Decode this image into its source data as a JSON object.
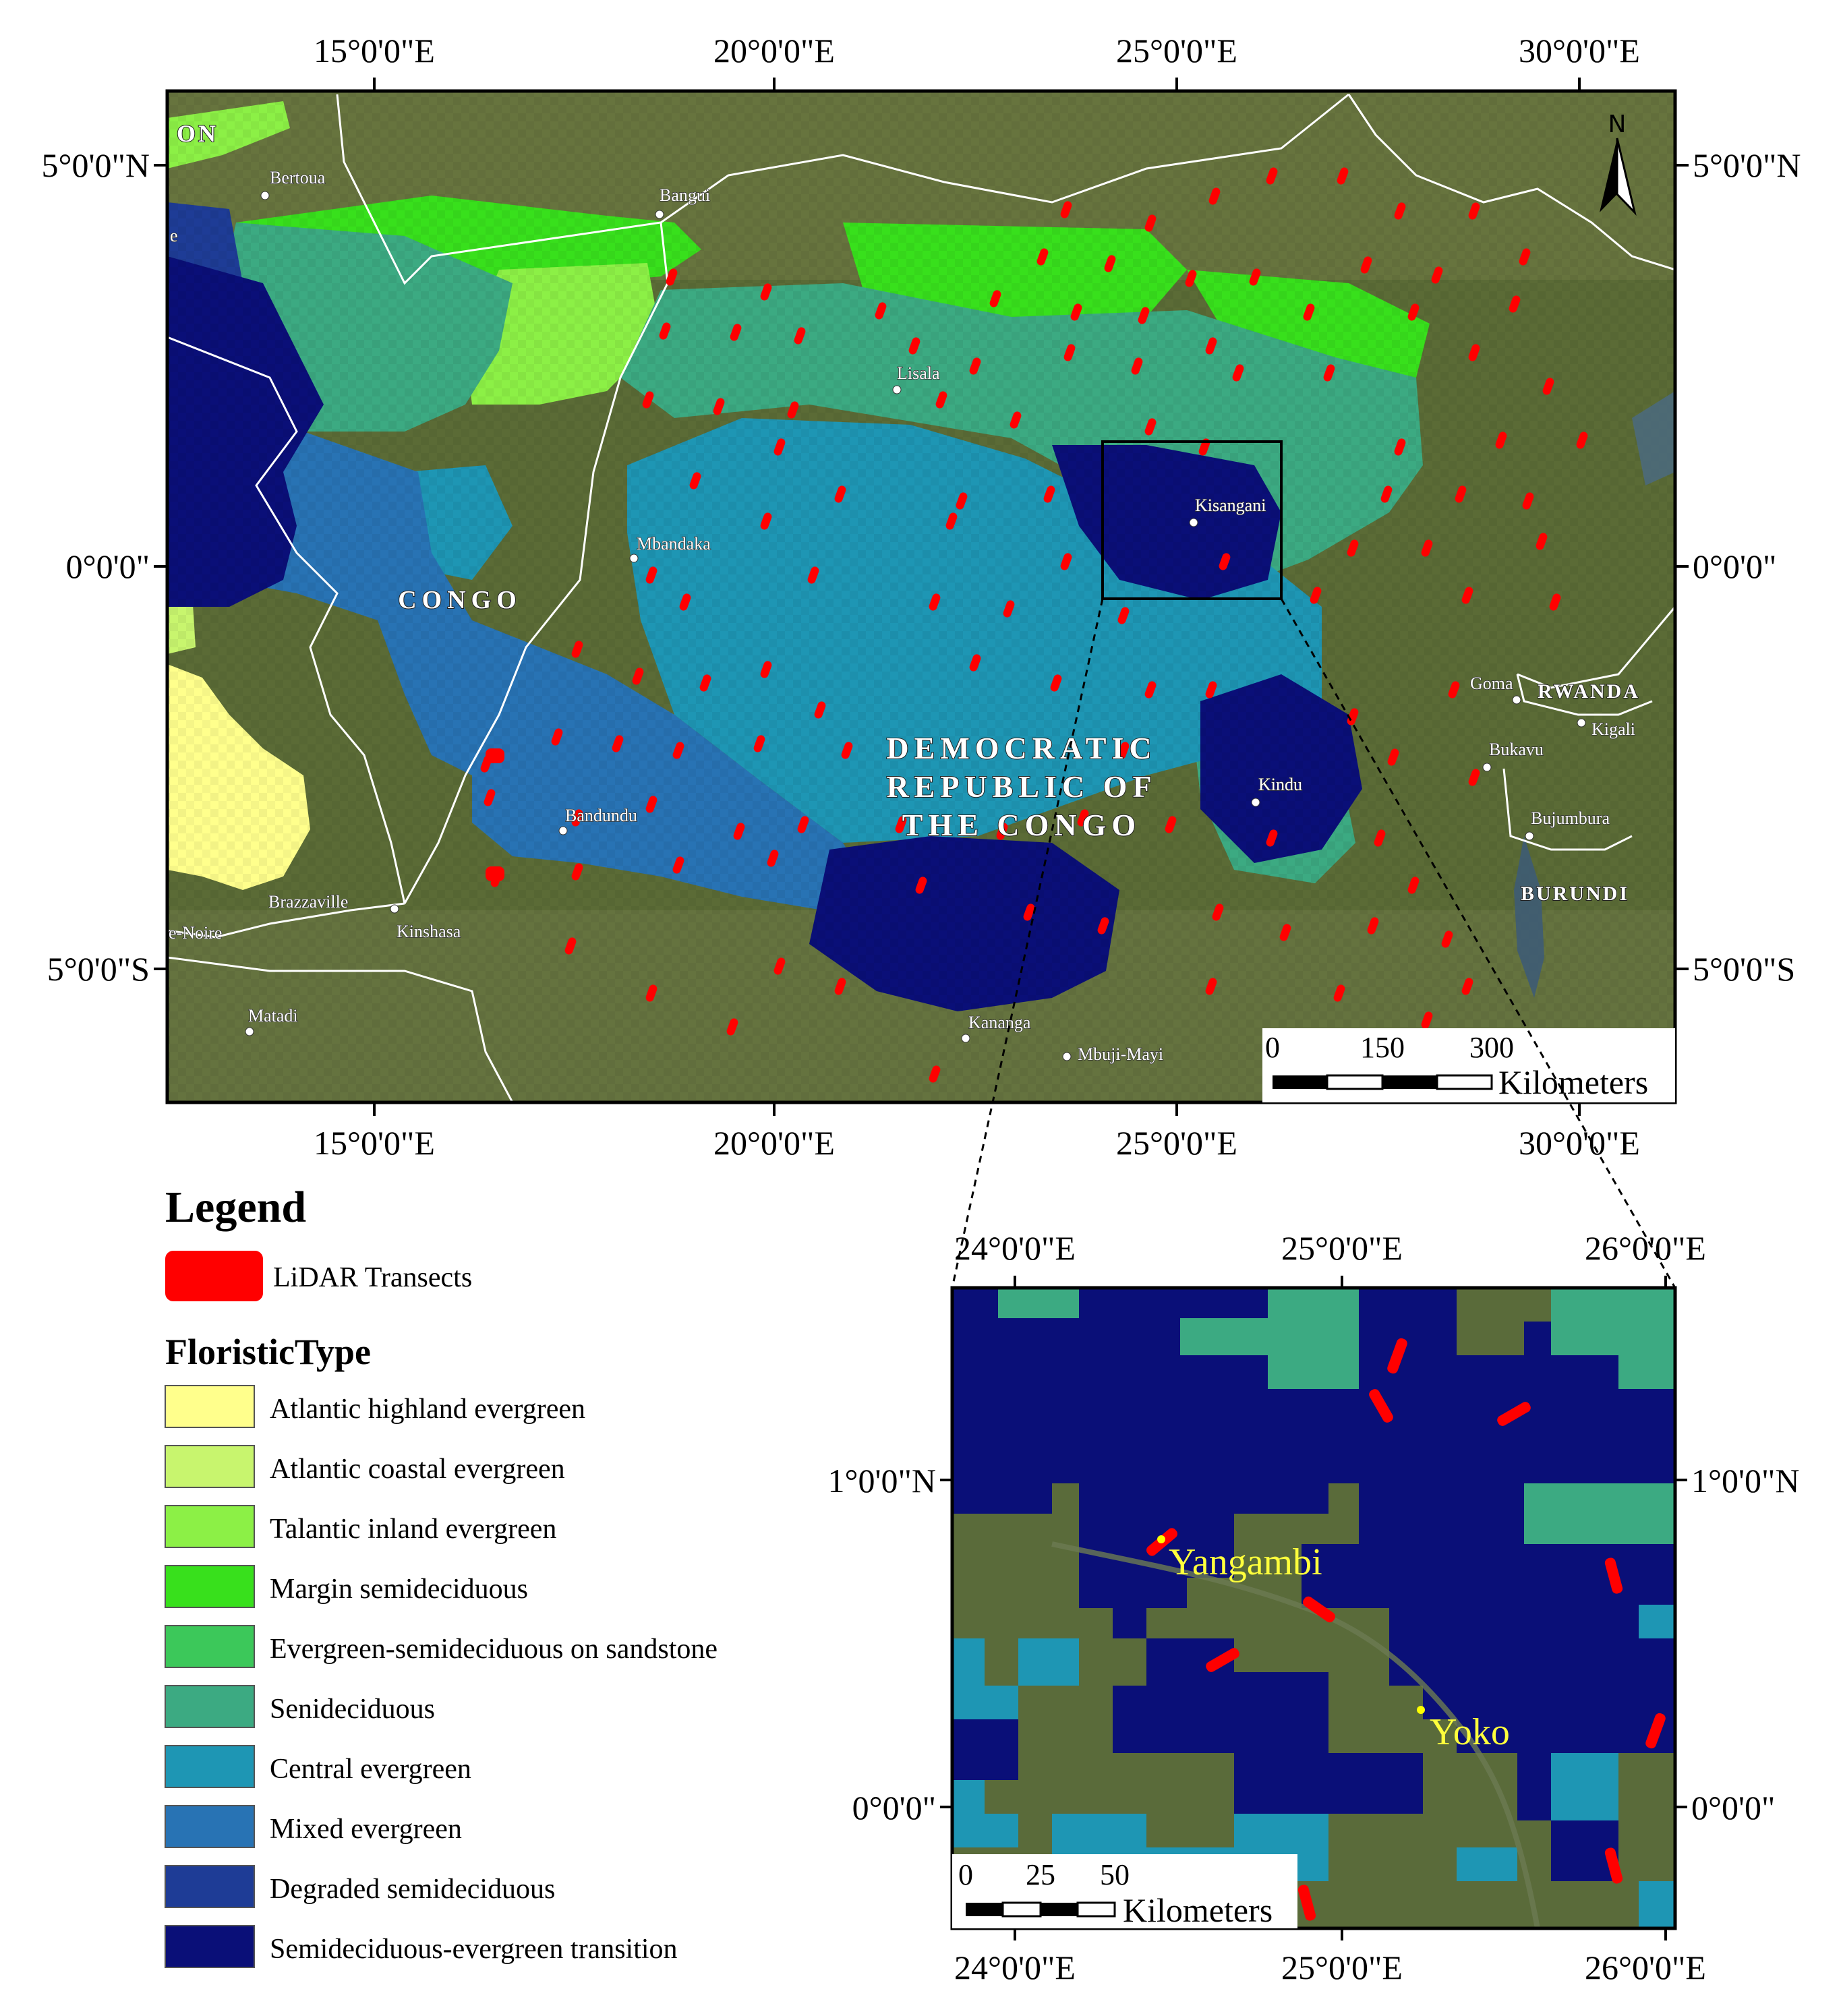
{
  "main_map": {
    "top_ticks": [
      "15°0'0\"E",
      "20°0'0\"E",
      "25°0'0\"E",
      "30°0'0\"E"
    ],
    "bottom_ticks": [
      "15°0'0\"E",
      "20°0'0\"E",
      "25°0'0\"E",
      "30°0'0\"E"
    ],
    "left_ticks": [
      "5°0'0\"N",
      "0°0'0\"",
      "5°0'0\"S"
    ],
    "right_ticks": [
      "5°0'0\"N",
      "0°0'0\"",
      "5°0'0\"S"
    ],
    "north_label": "N",
    "country_labels": {
      "congo": "CONGO",
      "drc_line1": "DEMOCRATIC",
      "drc_line2": "REPUBLIC  OF",
      "drc_line3": "THE  CONGO",
      "rwanda": "RWANDA",
      "burundi": "BURUNDI",
      "cameroon_fragment": "ON"
    },
    "cities": {
      "bertoua": "Bertoua",
      "bangui": "Bangui",
      "lisala": "Lisala",
      "mbandaka": "Mbandaka",
      "kisangani": "Kisangani",
      "goma": "Goma",
      "kigali": "Kigali",
      "bukavu": "Bukavu",
      "kindu": "Kindu",
      "bujumbura": "Bujumbura",
      "bandundu": "Bandundu",
      "brazzaville": "Brazzaville",
      "kinshasa": "Kinshasa",
      "pointe_noire_fragment": "e-Noire",
      "matadi": "Matadi",
      "kananga": "Kananga",
      "mbuji_mayi": "Mbuji-Mayi",
      "left_edge_fragment": "e"
    },
    "scale": {
      "labels": [
        "0",
        "150",
        "300"
      ],
      "unit": "Kilometers"
    }
  },
  "inset_map": {
    "top_ticks": [
      "24°0'0\"E",
      "25°0'0\"E",
      "26°0'0\"E"
    ],
    "bottom_ticks": [
      "24°0'0\"E",
      "25°0'0\"E",
      "26°0'0\"E"
    ],
    "left_ticks": [
      "1°0'0\"N",
      "0°0'0\""
    ],
    "right_ticks": [
      "1°0'0\"N",
      "0°0'0\""
    ],
    "places": {
      "yangambi": "Yangambi",
      "yoko": "Yoko"
    },
    "scale": {
      "labels": [
        "0",
        "25",
        "50"
      ],
      "unit": "Kilometers"
    }
  },
  "legend": {
    "title": "Legend",
    "lidar": {
      "label": "LiDAR Transects",
      "color": "#ff0000"
    },
    "floristic_title": "FloristicType",
    "classes": [
      {
        "label": "Atlantic highland evergreen",
        "color": "#ffff8c"
      },
      {
        "label": "Atlantic coastal evergreen",
        "color": "#c8f56e"
      },
      {
        "label": "Talantic inland evergreen",
        "color": "#8cf046"
      },
      {
        "label": "Margin semideciduous",
        "color": "#38e01c"
      },
      {
        "label": "Evergreen-semideciduous on sandstone",
        "color": "#3cc85a"
      },
      {
        "label": "Senideciduous",
        "color": "#3caa82"
      },
      {
        "label": "Central evergreen",
        "color": "#1e96b4"
      },
      {
        "label": "Mixed evergreen",
        "color": "#2873b4"
      },
      {
        "label": "Degraded semideciduous",
        "color": "#1e3c96"
      },
      {
        "label": "Semideciduous-evergreen transition",
        "color": "#0a0f78"
      }
    ]
  }
}
